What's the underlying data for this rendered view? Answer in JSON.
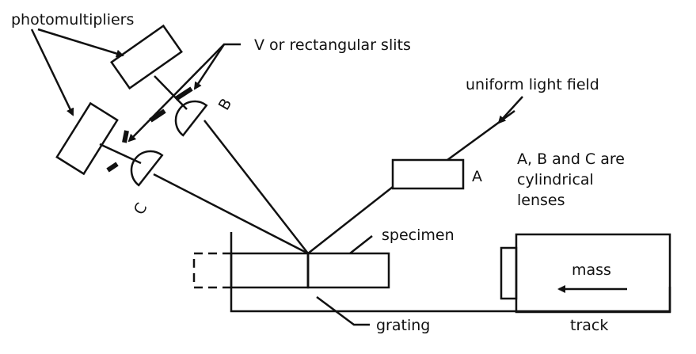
{
  "labels": {
    "photomultipliers": "photomultipliers",
    "slits": "V or rectangular slits",
    "light_field": "uniform light field",
    "lens_a": "A",
    "lens_b": "B",
    "lens_c": "C",
    "lenses_note_line1": "A, B and C are",
    "lenses_note_line2": "cylindrical",
    "lenses_note_line3": "lenses",
    "specimen": "specimen",
    "mass": "mass",
    "grating": "grating",
    "track": "track"
  }
}
